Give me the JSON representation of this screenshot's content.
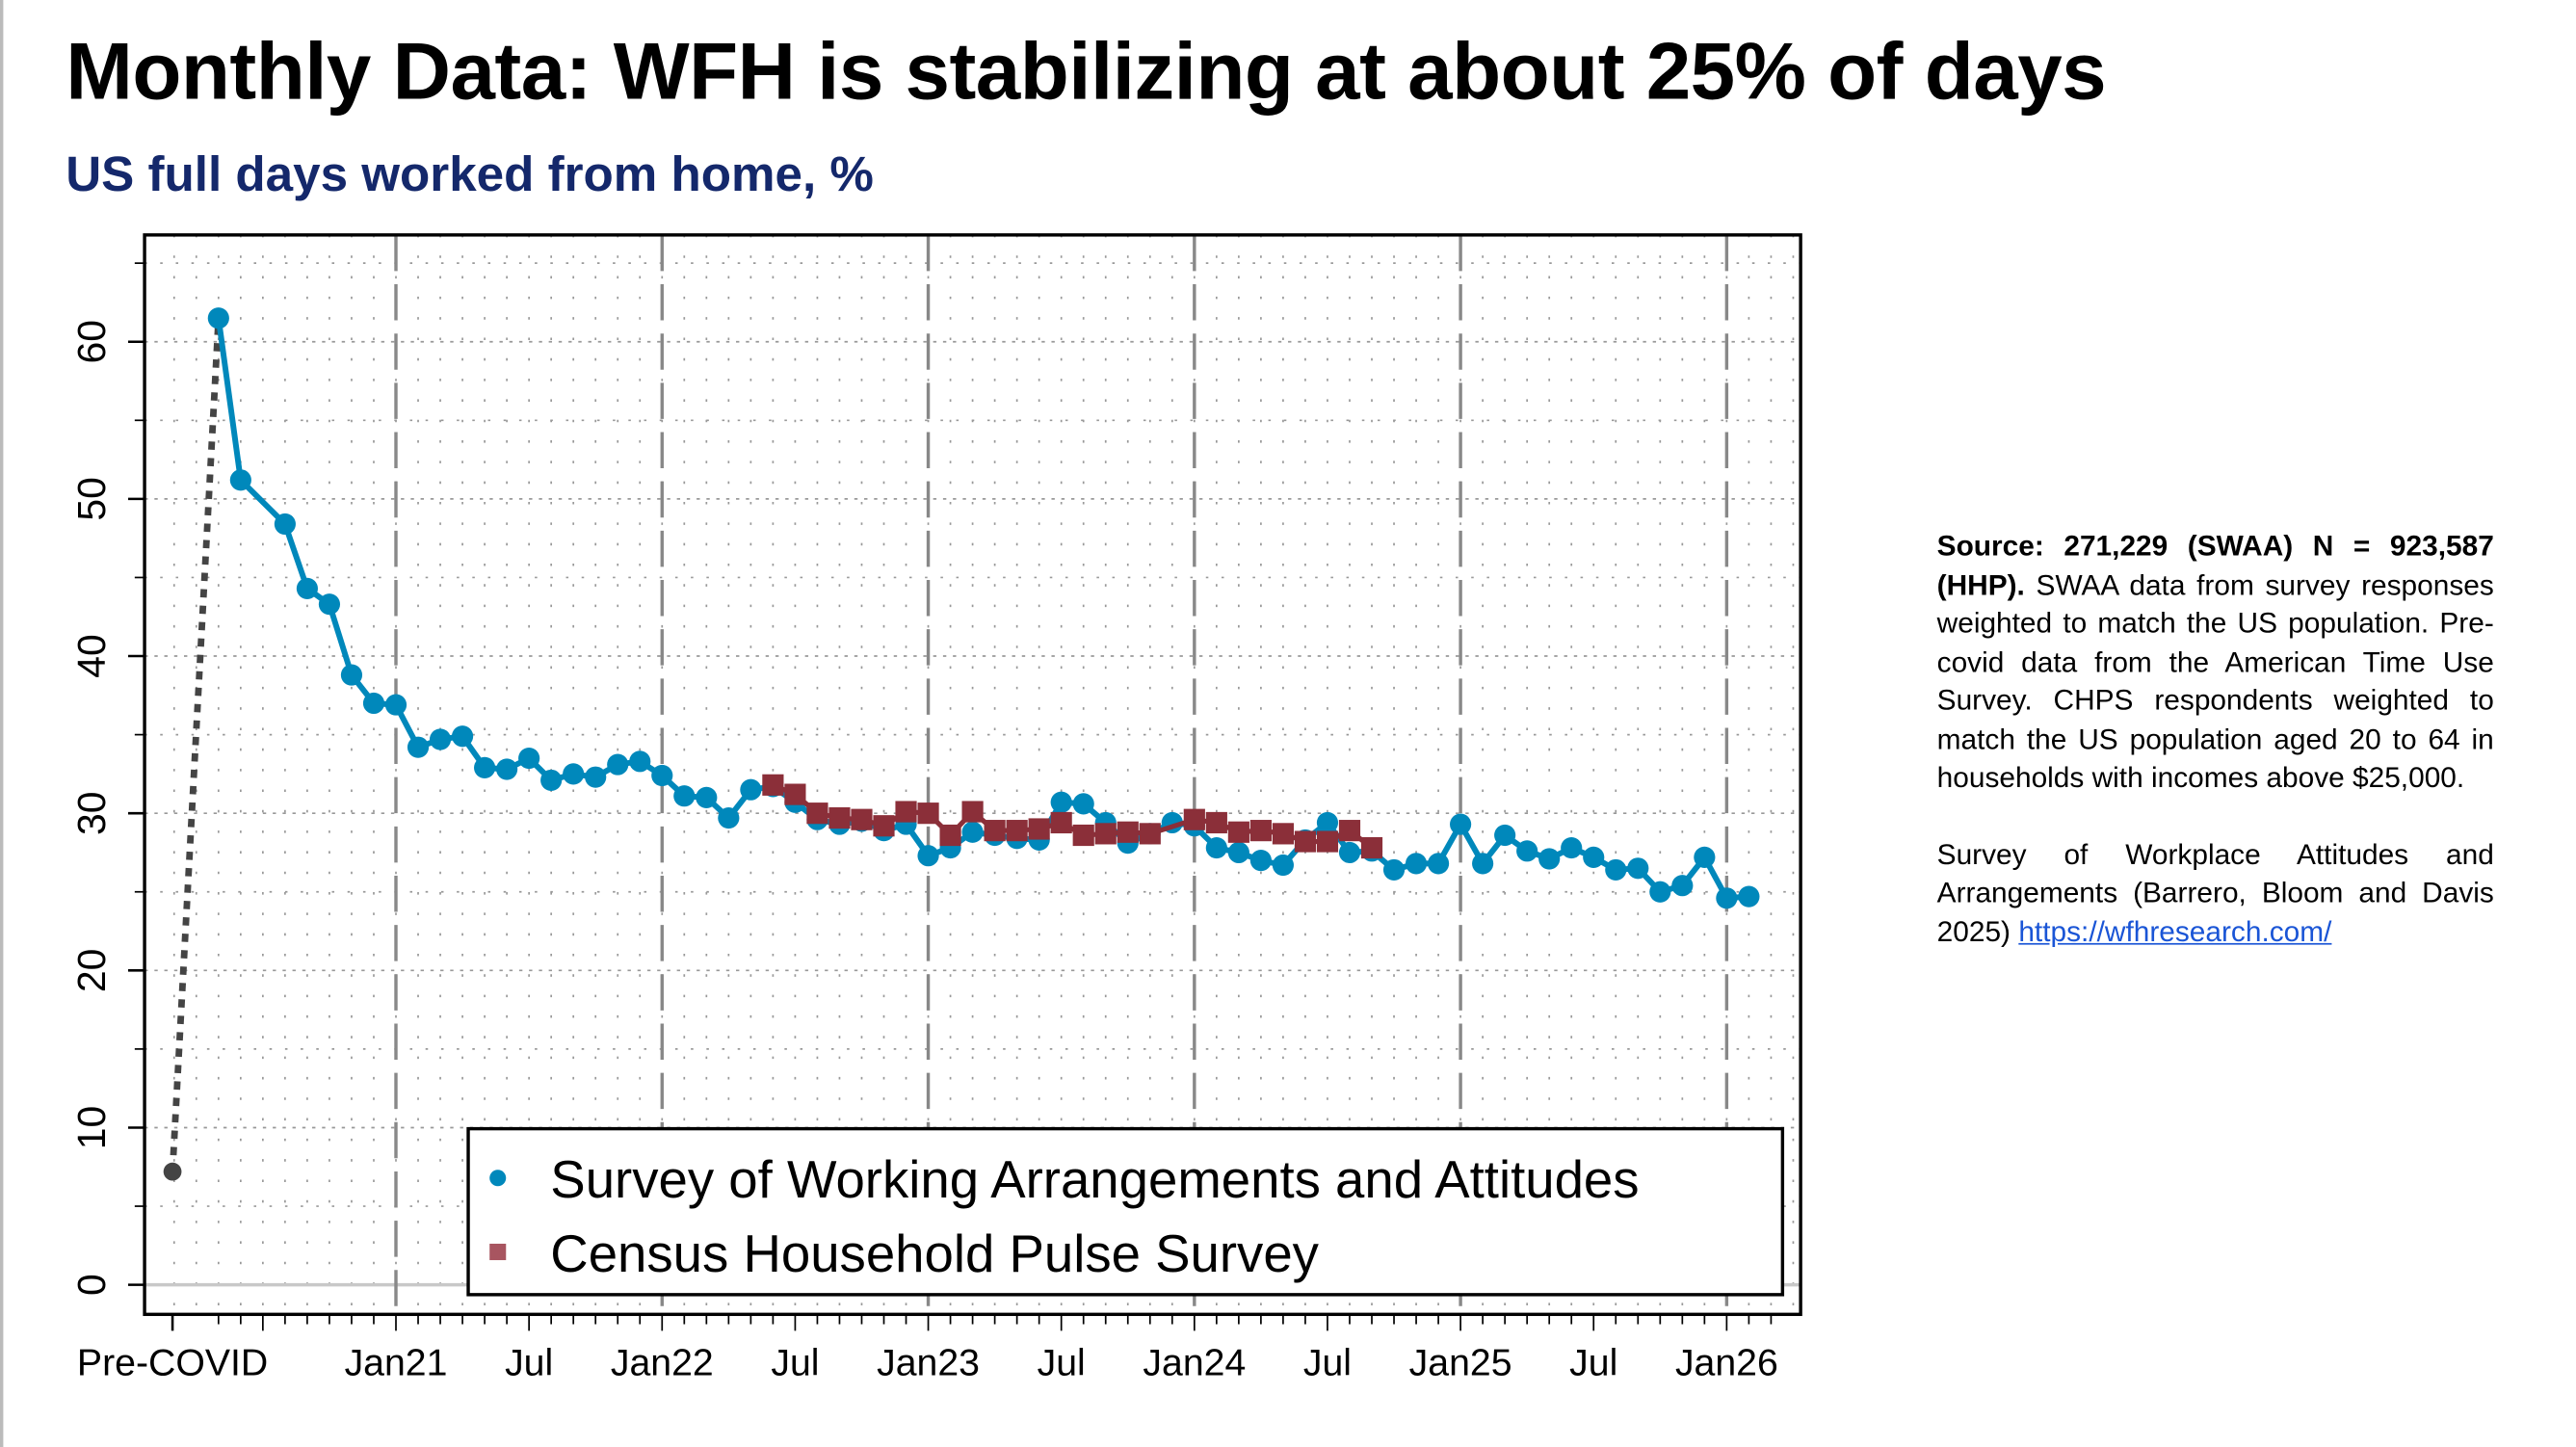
{
  "header": {
    "title": "Monthly Data: WFH is stabilizing at about 25% of days",
    "subtitle": "US full days worked from home, %"
  },
  "note": {
    "source_bold": "Source: 271,229 (SWAA) N = 923,587 (HHP).",
    "source_text": "SWAA data from survey responses weighted to match the US population. Pre-covid data from the American Time Use Survey. CHPS respondents weighted to match the US population aged 20 to 64 in households with incomes above $25,000.",
    "citation": "Survey of Workplace Attitudes and Arrangements (Barrero, Bloom and Davis 2025)",
    "link": "https://wfhresearch.com/"
  },
  "chart_data": {
    "type": "line",
    "title": "",
    "xlabel": "",
    "ylabel": "",
    "ylim": [
      0,
      65
    ],
    "y_ticks": [
      "0",
      "10",
      "20",
      "30",
      "40",
      "50",
      "60"
    ],
    "x_ticks": [
      "Pre-COVID",
      "Jan21",
      "Jul",
      "Jan22",
      "Jul",
      "Jan23",
      "Jul",
      "Jan24",
      "Jul",
      "Jan25",
      "Jul",
      "Jan26"
    ],
    "grid": true,
    "legend_placement": "bottom-right",
    "colors": {
      "swaa": "#0088bb",
      "hhp": "#8b2f39",
      "precovid": "#444444"
    },
    "pre_covid": {
      "x": "Pre-COVID",
      "y": 7.2
    },
    "series": [
      {
        "name": "Survey of Working Arrangements and Attitudes",
        "marker": "circle",
        "points": [
          [
            "2020-05",
            61.5
          ],
          [
            "2020-06",
            51.2
          ],
          [
            "2020-08",
            48.4
          ],
          [
            "2020-09",
            44.3
          ],
          [
            "2020-10",
            43.3
          ],
          [
            "2020-11",
            38.8
          ],
          [
            "2020-12",
            37.0
          ],
          [
            "2021-01",
            36.9
          ],
          [
            "2021-02",
            34.2
          ],
          [
            "2021-03",
            34.7
          ],
          [
            "2021-04",
            34.9
          ],
          [
            "2021-05",
            32.9
          ],
          [
            "2021-06",
            32.8
          ],
          [
            "2021-07",
            33.5
          ],
          [
            "2021-08",
            32.1
          ],
          [
            "2021-09",
            32.5
          ],
          [
            "2021-10",
            32.3
          ],
          [
            "2021-11",
            33.1
          ],
          [
            "2021-12",
            33.3
          ],
          [
            "2022-01",
            32.4
          ],
          [
            "2022-02",
            31.1
          ],
          [
            "2022-03",
            31.0
          ],
          [
            "2022-04",
            29.7
          ],
          [
            "2022-05",
            31.5
          ],
          [
            "2022-06",
            31.7
          ],
          [
            "2022-07",
            30.7
          ],
          [
            "2022-08",
            29.6
          ],
          [
            "2022-09",
            29.3
          ],
          [
            "2022-10",
            29.5
          ],
          [
            "2022-11",
            28.9
          ],
          [
            "2022-12",
            29.3
          ],
          [
            "2023-01",
            27.3
          ],
          [
            "2023-02",
            27.8
          ],
          [
            "2023-03",
            28.8
          ],
          [
            "2023-04",
            28.6
          ],
          [
            "2023-05",
            28.4
          ],
          [
            "2023-06",
            28.3
          ],
          [
            "2023-07",
            30.7
          ],
          [
            "2023-08",
            30.6
          ],
          [
            "2023-09",
            29.4
          ],
          [
            "2023-10",
            28.1
          ],
          [
            "2023-11",
            28.7
          ],
          [
            "2023-12",
            29.4
          ],
          [
            "2024-01",
            29.2
          ],
          [
            "2024-02",
            27.8
          ],
          [
            "2024-03",
            27.5
          ],
          [
            "2024-04",
            27.0
          ],
          [
            "2024-05",
            26.7
          ],
          [
            "2024-06",
            28.3
          ],
          [
            "2024-07",
            29.4
          ],
          [
            "2024-08",
            27.5
          ],
          [
            "2024-09",
            27.6
          ],
          [
            "2024-10",
            26.4
          ],
          [
            "2024-11",
            26.8
          ],
          [
            "2024-12",
            26.8
          ],
          [
            "2025-01",
            29.3
          ],
          [
            "2025-02",
            26.8
          ],
          [
            "2025-03",
            28.6
          ],
          [
            "2025-04",
            27.6
          ],
          [
            "2025-05",
            27.1
          ],
          [
            "2025-06",
            27.8
          ],
          [
            "2025-07",
            27.2
          ],
          [
            "2025-08",
            26.4
          ],
          [
            "2025-09",
            26.5
          ],
          [
            "2025-10",
            25.0
          ],
          [
            "2025-11",
            25.4
          ],
          [
            "2025-12",
            27.2
          ],
          [
            "2026-01",
            24.6
          ],
          [
            "2026-02",
            24.7
          ]
        ]
      },
      {
        "name": "Census Household Pulse Survey",
        "marker": "square",
        "points": [
          [
            "2022-06",
            31.8
          ],
          [
            "2022-07",
            31.2
          ],
          [
            "2022-08",
            30.0
          ],
          [
            "2022-09",
            29.7
          ],
          [
            "2022-10",
            29.6
          ],
          [
            "2022-11",
            29.2
          ],
          [
            "2022-12",
            30.1
          ],
          [
            "2023-01",
            30.0
          ],
          [
            "2023-02",
            28.6
          ],
          [
            "2023-03",
            30.1
          ],
          [
            "2023-04",
            28.9
          ],
          [
            "2023-05",
            28.9
          ],
          [
            "2023-06",
            29.0
          ],
          [
            "2023-07",
            29.4
          ],
          [
            "2023-08",
            28.6
          ],
          [
            "2023-09",
            28.7
          ],
          [
            "2023-10",
            28.8
          ],
          [
            "2023-11",
            28.7
          ],
          [
            "2024-01",
            29.6
          ],
          [
            "2024-02",
            29.4
          ],
          [
            "2024-03",
            28.8
          ],
          [
            "2024-04",
            28.9
          ],
          [
            "2024-05",
            28.7
          ],
          [
            "2024-06",
            28.2
          ],
          [
            "2024-07",
            28.2
          ],
          [
            "2024-08",
            28.9
          ],
          [
            "2024-09",
            27.8
          ]
        ]
      }
    ]
  }
}
